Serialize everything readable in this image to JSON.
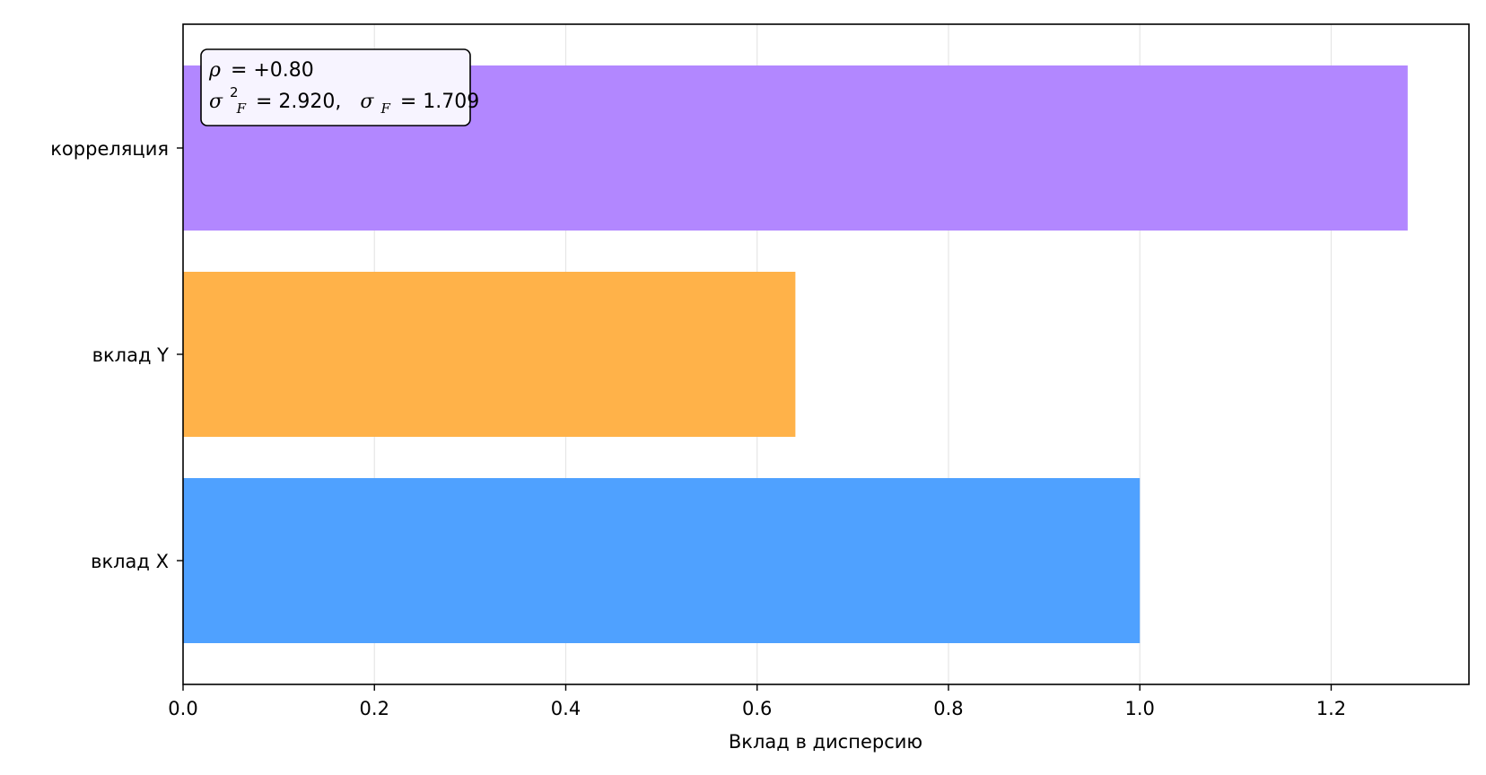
{
  "chart_data": {
    "type": "bar",
    "orientation": "horizontal",
    "categories": [
      "вклад X",
      "вклад Y",
      "корреляция"
    ],
    "values": [
      1.0,
      0.64,
      1.28
    ],
    "colors": [
      "#4FA1FF",
      "#FFB249",
      "#B287FF"
    ],
    "title": "",
    "xlabel": "Вклад в дисперсию",
    "ylabel": "",
    "xlim": [
      0,
      1.344
    ],
    "xticks": [
      0.0,
      0.2,
      0.4,
      0.6,
      0.8,
      1.0,
      1.2
    ],
    "xtick_labels": [
      "0.0",
      "0.2",
      "0.4",
      "0.6",
      "0.8",
      "1.0",
      "1.2"
    ],
    "grid": {
      "x": true,
      "y": false,
      "color": "#e6e6e6"
    },
    "annotation": {
      "rho_symbol": "ρ",
      "rho_value": "= +0.80",
      "sigma_symbol": "σ",
      "sigma_sub": "F",
      "sigma_sup": "2",
      "variance_value": "= 2.920,",
      "std_value": "= 1.709",
      "background": "#f7f4ff"
    }
  }
}
